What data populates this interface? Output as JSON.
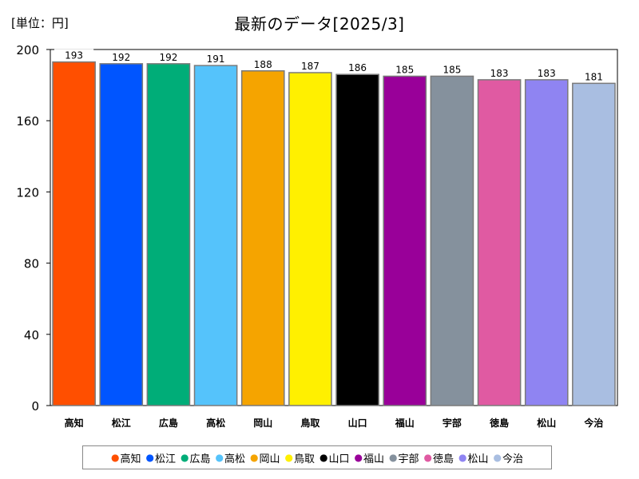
{
  "header": {
    "unit_label": "[単位：円]",
    "title": "最新のデータ[2025/3]"
  },
  "chart_data": {
    "type": "bar",
    "title": "最新のデータ[2025/3]",
    "unit": "[単位：円]",
    "categories": [
      "高知",
      "松江",
      "広島",
      "高松",
      "岡山",
      "鳥取",
      "山口",
      "福山",
      "宇部",
      "徳島",
      "松山",
      "今治"
    ],
    "values": [
      193,
      192,
      192,
      191,
      188,
      187,
      186,
      185,
      185,
      183,
      183,
      181
    ],
    "colors": [
      "#ff4f00",
      "#0055ff",
      "#00ad78",
      "#55c3fb",
      "#f5a400",
      "#fff000",
      "#000000",
      "#990099",
      "#85919d",
      "#e05aa2",
      "#8f84f2",
      "#a9bee1"
    ],
    "ylim": [
      0,
      200
    ],
    "yticks": [
      0,
      40,
      80,
      120,
      160,
      200
    ],
    "grid": false,
    "legend": "bottom"
  }
}
